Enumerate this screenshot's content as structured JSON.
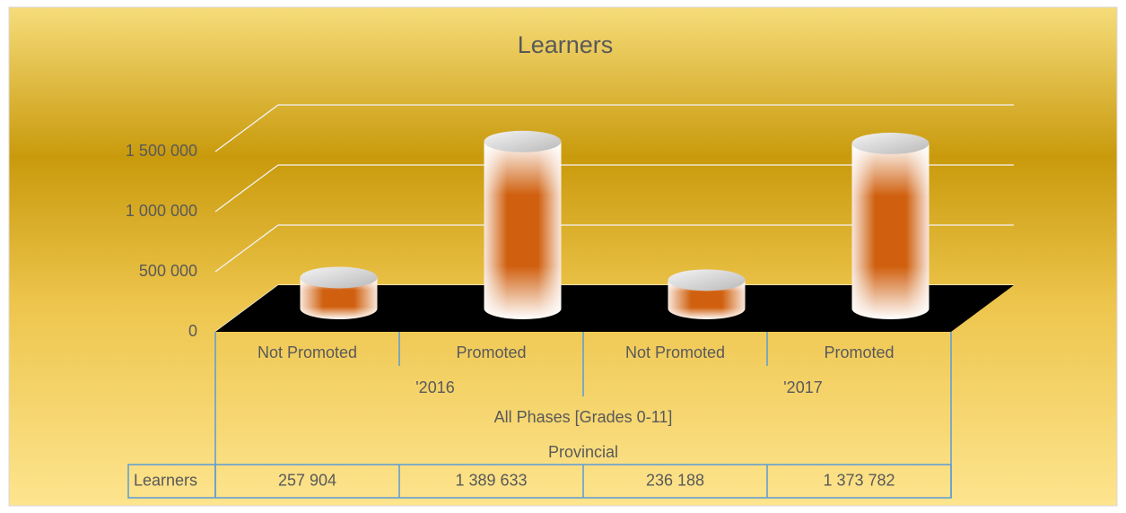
{
  "chart_data": {
    "type": "bar",
    "title": "Learners",
    "categories": [
      "Not Promoted",
      "Promoted",
      "Not Promoted",
      "Promoted"
    ],
    "category_levels": [
      [
        "'2016",
        "'2017"
      ],
      [
        "All Phases [Grades 0-11]"
      ],
      [
        "Provincial"
      ]
    ],
    "series": [
      {
        "name": "Learners",
        "color": "#c85a10",
        "values": [
          257904,
          1389633,
          236188,
          1373782
        ],
        "value_labels": [
          "257 904",
          "1 389 633",
          "236 188",
          "1 373 782"
        ]
      }
    ],
    "ylim": [
      0,
      1500000
    ],
    "yticks": [
      0,
      {
        "value": 500000,
        "label": "500 000"
      },
      {
        "value": 1000000,
        "label": "1 000 000"
      },
      {
        "value": 1500000,
        "label": "1 500 000"
      }
    ],
    "grid": true
  }
}
